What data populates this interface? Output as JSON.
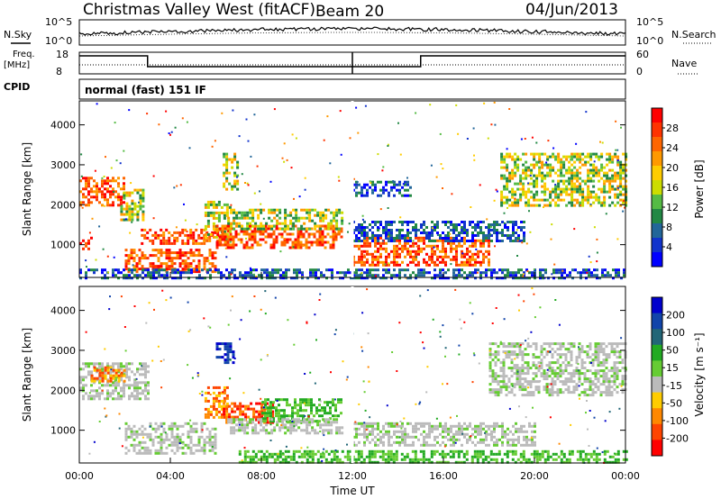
{
  "header": {
    "title": "Christmas Valley West (fitACF)",
    "beam": "Beam 20",
    "date": "04/Jun/2013"
  },
  "top_panels": {
    "nsky_label": "N.Sky",
    "nsearch_label": "N.Search",
    "nsky_ticks": [
      "10^5",
      "10^0"
    ],
    "nsearch_ticks": [
      "10^5",
      "10^0"
    ],
    "freq_label_1": "Freq.",
    "freq_label_2": "[MHz]",
    "freq_ticks": [
      "18",
      "8"
    ],
    "nave_label": "Nave",
    "nave_ticks": [
      "60",
      "0"
    ],
    "cpid_label": "CPID",
    "cpid_text": "normal (fast) 151 IF"
  },
  "colorbars": {
    "power": {
      "label": "Power [dB]",
      "ticks": [
        "28",
        "24",
        "20",
        "16",
        "12",
        "8",
        "4"
      ],
      "colors": [
        "#ff0000",
        "#ff3300",
        "#ff6600",
        "#ff9900",
        "#ffcc00",
        "#ccdd00",
        "#55bb44",
        "#228844",
        "#226699",
        "#1133cc",
        "#0000ff"
      ]
    },
    "velocity": {
      "label": "Velocity [m s⁻¹]",
      "ticks": [
        "200",
        "100",
        "50",
        "15",
        "-15",
        "-50",
        "-100",
        "-200"
      ],
      "colors": [
        "#0000cc",
        "#1144aa",
        "#226677",
        "#22aa22",
        "#66cc33",
        "#bbbbbb",
        "#ffcc00",
        "#ff8800",
        "#ff4400",
        "#ff0000"
      ]
    }
  },
  "chart_data": [
    {
      "type": "heatmap",
      "name": "power",
      "ylabel": "Slant Range [km]",
      "xlabel": "Time UT",
      "x_ticks": [
        "00:00",
        "04:00",
        "08:00",
        "12:00",
        "16:00",
        "20:00",
        "00:00"
      ],
      "x_range_hours": [
        0,
        24
      ],
      "y_ticks": [
        1000,
        2000,
        3000,
        4000
      ],
      "y_range_km": [
        180,
        4600
      ],
      "regions": [
        {
          "t0": 0.0,
          "t1": 2.0,
          "r0": 2000,
          "r1": 2700,
          "level": "high"
        },
        {
          "t0": 0.0,
          "t1": 0.5,
          "r0": 900,
          "r1": 1200,
          "level": "high"
        },
        {
          "t0": 1.8,
          "t1": 2.8,
          "r0": 1600,
          "r1": 2400,
          "level": "mid"
        },
        {
          "t0": 2.0,
          "t1": 6.0,
          "r0": 300,
          "r1": 900,
          "level": "high"
        },
        {
          "t0": 2.7,
          "t1": 6.2,
          "r0": 1000,
          "r1": 1400,
          "level": "high"
        },
        {
          "t0": 5.5,
          "t1": 6.6,
          "r0": 1200,
          "r1": 2100,
          "level": "mid"
        },
        {
          "t0": 6.0,
          "t1": 11.5,
          "r0": 900,
          "r1": 1500,
          "level": "high"
        },
        {
          "t0": 6.5,
          "t1": 11.5,
          "r0": 1400,
          "r1": 1900,
          "level": "mid"
        },
        {
          "t0": 6.3,
          "t1": 6.9,
          "r0": 2400,
          "r1": 3300,
          "level": "mid"
        },
        {
          "t0": 12.0,
          "t1": 18.0,
          "r0": 500,
          "r1": 1200,
          "level": "high"
        },
        {
          "t0": 12.0,
          "t1": 19.5,
          "r0": 1100,
          "r1": 1600,
          "level": "low"
        },
        {
          "t0": 12.0,
          "t1": 14.5,
          "r0": 2200,
          "r1": 2600,
          "level": "low"
        },
        {
          "t0": 18.5,
          "t1": 24.0,
          "r0": 2000,
          "r1": 3300,
          "level": "mid"
        },
        {
          "t0": 0.0,
          "t1": 24.0,
          "r0": 180,
          "r1": 400,
          "level": "low"
        }
      ]
    },
    {
      "type": "heatmap",
      "name": "velocity",
      "ylabel": "Slant Range [km]",
      "xlabel": "Time UT",
      "x_ticks": [
        "00:00",
        "04:00",
        "08:00",
        "12:00",
        "16:00",
        "20:00",
        "00:00"
      ],
      "x_range_hours": [
        0,
        24
      ],
      "y_ticks": [
        1000,
        2000,
        3000,
        4000
      ],
      "y_range_km": [
        180,
        4600
      ],
      "regions": [
        {
          "t0": 0.0,
          "t1": 3.0,
          "r0": 1800,
          "r1": 2700,
          "level": "grey"
        },
        {
          "t0": 0.5,
          "t1": 2.0,
          "r0": 2200,
          "r1": 2600,
          "level": "orange"
        },
        {
          "t0": 2.0,
          "t1": 6.0,
          "r0": 400,
          "r1": 1200,
          "level": "grey"
        },
        {
          "t0": 5.5,
          "t1": 6.5,
          "r0": 1300,
          "r1": 2100,
          "level": "orange"
        },
        {
          "t0": 6.0,
          "t1": 6.8,
          "r0": 2700,
          "r1": 3200,
          "level": "blue"
        },
        {
          "t0": 6.3,
          "t1": 8.5,
          "r0": 1200,
          "r1": 1700,
          "level": "red"
        },
        {
          "t0": 8.0,
          "t1": 11.5,
          "r0": 1200,
          "r1": 1800,
          "level": "green"
        },
        {
          "t0": 6.5,
          "t1": 11.5,
          "r0": 900,
          "r1": 1300,
          "level": "grey"
        },
        {
          "t0": 12.0,
          "t1": 20.0,
          "r0": 600,
          "r1": 1200,
          "level": "grey"
        },
        {
          "t0": 7.0,
          "t1": 24.0,
          "r0": 180,
          "r1": 500,
          "level": "green"
        },
        {
          "t0": 18.0,
          "t1": 24.0,
          "r0": 1900,
          "r1": 3200,
          "level": "grey"
        }
      ]
    }
  ]
}
